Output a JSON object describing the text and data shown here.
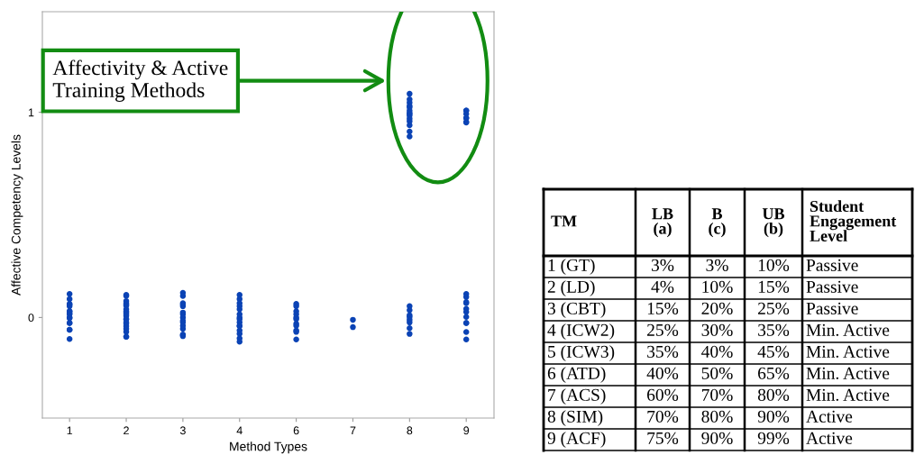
{
  "chart_data": [
    {
      "type": "scatter",
      "xlabel": "Method Types",
      "ylabel": "Affective Competency Levels",
      "marker": "circle",
      "grid": false,
      "legend": false,
      "categories": [
        "1",
        "2",
        "3",
        "4",
        "6",
        "7",
        "8",
        "9"
      ],
      "ylim": [
        -0.49,
        1.49
      ],
      "yticks": [
        0,
        1
      ],
      "annotations": [
        "Affectivity & Active\nTraining Methods"
      ],
      "series": [
        {
          "color": "#0b43b5",
          "x": [
            "1",
            "1",
            "1",
            "1",
            "1",
            "1",
            "1",
            "1",
            "1",
            "1",
            "1",
            "1",
            "1",
            "1",
            "1",
            "1",
            "2",
            "2",
            "2",
            "2",
            "2",
            "2",
            "2",
            "2",
            "2",
            "2",
            "2",
            "2",
            "2",
            "2",
            "2",
            "2",
            "2",
            "2",
            "2",
            "2",
            "3",
            "3",
            "3",
            "3",
            "3",
            "3",
            "3",
            "3",
            "3",
            "3",
            "3",
            "3",
            "3",
            "3",
            "3",
            "4",
            "4",
            "4",
            "4",
            "4",
            "4",
            "4",
            "4",
            "4",
            "4",
            "4",
            "4",
            "4",
            "4",
            "4",
            "6",
            "6",
            "6",
            "6",
            "6",
            "6",
            "6",
            "6",
            "6",
            "6",
            "6",
            "7",
            "7",
            "8",
            "8",
            "8",
            "8",
            "8",
            "8",
            "8",
            "8",
            "9",
            "9",
            "9",
            "9",
            "9",
            "9",
            "9",
            "9",
            "9",
            "9",
            "9",
            "8",
            "8",
            "8",
            "8",
            "8",
            "8",
            "8",
            "8",
            "8",
            "8",
            "8",
            "8",
            "8",
            "8",
            "9",
            "9",
            "9",
            "9",
            "9",
            "9",
            "9"
          ],
          "values": [
            0.115,
            0.09,
            0.066,
            0.063,
            0.055,
            0.03,
            0.03,
            0.016,
            0.02,
            0.0,
            -0.003,
            -0.027,
            -0.027,
            -0.06,
            -0.06,
            -0.105,
            0.11,
            0.105,
            0.07,
            0.08,
            0.063,
            0.058,
            0.024,
            0.03,
            0.008,
            -0.008,
            -0.024,
            -0.03,
            -0.042,
            -0.055,
            -0.07,
            -0.094,
            -0.094,
            -0.008,
            0.04,
            0.016,
            0.12,
            0.105,
            0.055,
            0.063,
            0.016,
            0.024,
            0.0,
            -0.055,
            -0.04,
            -0.083,
            -0.086,
            -0.091,
            -0.024,
            -0.016,
            0.07,
            0.11,
            0.09,
            0.07,
            0.055,
            0.04,
            0.016,
            0.0,
            -0.024,
            -0.04,
            -0.063,
            -0.042,
            -0.079,
            -0.102,
            -0.118,
            -0.008,
            0.066,
            0.055,
            0.03,
            0.016,
            0.0,
            -0.008,
            -0.03,
            -0.04,
            -0.063,
            -0.07,
            -0.107,
            -0.047,
            -0.011,
            0.055,
            0.036,
            0.011,
            0.003,
            -0.011,
            -0.024,
            -0.052,
            -0.08,
            0.115,
            0.1,
            0.075,
            0.07,
            0.042,
            0.027,
            0.003,
            -0.027,
            -0.027,
            -0.071,
            -0.107,
            1.09,
            1.063,
            1.047,
            1.031,
            1.024,
            1.008,
            0.992,
            0.956,
            0.984,
            0.937,
            0.906,
            0.882,
            0.969,
            0.997,
            1.008,
            1.008,
            0.992,
            0.972,
            0.972,
            0.953,
            0.95
          ]
        }
      ]
    },
    {
      "type": "other",
      "categories": [
        "TM",
        "LB (a)",
        "B (c)",
        "UB (b)",
        "Student Engagement Level"
      ],
      "cell_labels": [
        [
          "1 (GT)",
          "3%",
          "3%",
          "10%",
          "Passive"
        ],
        [
          "2 (LD)",
          "4%",
          "10%",
          "15%",
          "Passive"
        ],
        [
          "3 (CBT)",
          "15%",
          "20%",
          "25%",
          "Passive"
        ],
        [
          "4 (ICW2)",
          "25%",
          "30%",
          "35%",
          "Min. Active"
        ],
        [
          "5 (ICW3)",
          "35%",
          "40%",
          "45%",
          "Min. Active"
        ],
        [
          "6 (ATD)",
          "40%",
          "50%",
          "65%",
          "Min. Active"
        ],
        [
          "7 (ACS)",
          "60%",
          "70%",
          "80%",
          "Min. Active"
        ],
        [
          "8 (SIM)",
          "70%",
          "80%",
          "90%",
          "Active"
        ],
        [
          "9 (ACF)",
          "75%",
          "90%",
          "99%",
          "Active"
        ]
      ]
    }
  ]
}
